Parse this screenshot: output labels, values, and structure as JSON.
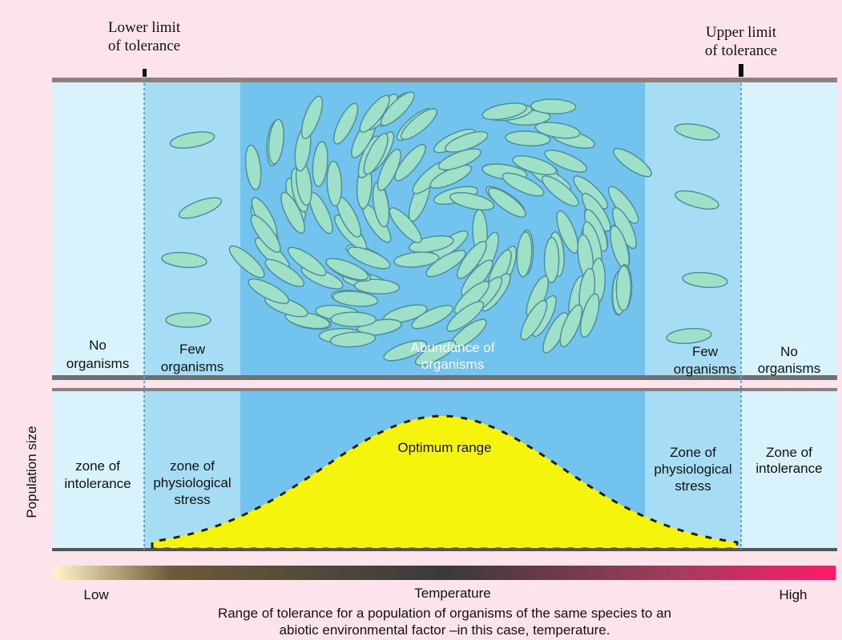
{
  "top_labels": {
    "lower_limit": [
      "Lower limit",
      "of tolerance"
    ],
    "upper_limit": [
      "Upper limit",
      "of tolerance"
    ]
  },
  "upper_panel": {
    "zones": [
      [
        "No",
        "organisms"
      ],
      [
        "Few",
        "organisms"
      ],
      [
        "Abundance of",
        "organisms"
      ],
      [
        "Few",
        "organisms"
      ],
      [
        "No",
        "organisms"
      ]
    ]
  },
  "lower_panel": {
    "y_label": "Population size",
    "zones": [
      [
        "zone of",
        "intolerance"
      ],
      [
        "zone of",
        "physiological",
        "stress"
      ],
      [
        "Optimum range"
      ],
      [
        "Zone of",
        "physiological",
        "stress"
      ],
      [
        "Zone of",
        "intolerance"
      ]
    ]
  },
  "axis": {
    "low": "Low",
    "title": "Temperature",
    "high": "High"
  },
  "caption": [
    "Range of tolerance for a population of organisms of the same species to an",
    "abiotic environmental factor –in this case, temperature."
  ]
}
